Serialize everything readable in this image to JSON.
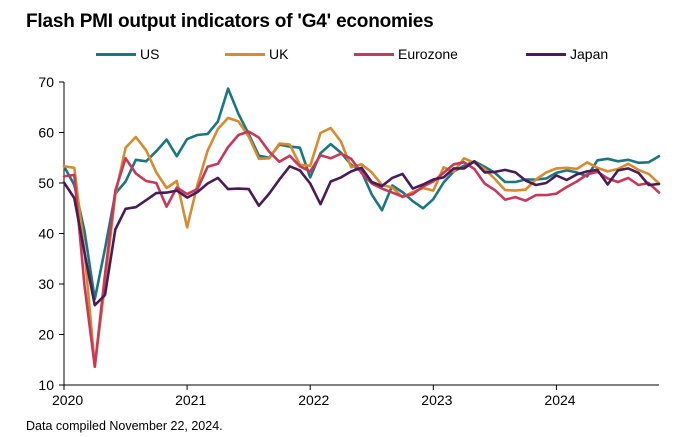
{
  "title": "Flash PMI output indicators of 'G4' economies",
  "footnote": "Data compiled November 22, 2024.",
  "chart_data": {
    "type": "line",
    "title": "Flash PMI output indicators of 'G4' economies",
    "xlabel": "",
    "ylabel": "",
    "ylim": [
      10,
      70
    ],
    "xlim": [
      "2020-01",
      "2024-11"
    ],
    "yticks": [
      10,
      20,
      30,
      40,
      50,
      60,
      70
    ],
    "xticks": [
      "2020",
      "2021",
      "2022",
      "2023",
      "2024"
    ],
    "grid": false,
    "legend_position": "top",
    "x": [
      "2020-01",
      "2020-02",
      "2020-03",
      "2020-04",
      "2020-05",
      "2020-06",
      "2020-07",
      "2020-08",
      "2020-09",
      "2020-10",
      "2020-11",
      "2020-12",
      "2021-01",
      "2021-02",
      "2021-03",
      "2021-04",
      "2021-05",
      "2021-06",
      "2021-07",
      "2021-08",
      "2021-09",
      "2021-10",
      "2021-11",
      "2021-12",
      "2022-01",
      "2022-02",
      "2022-03",
      "2022-04",
      "2022-05",
      "2022-06",
      "2022-07",
      "2022-08",
      "2022-09",
      "2022-10",
      "2022-11",
      "2022-12",
      "2023-01",
      "2023-02",
      "2023-03",
      "2023-04",
      "2023-05",
      "2023-06",
      "2023-07",
      "2023-08",
      "2023-09",
      "2023-10",
      "2023-11",
      "2023-12",
      "2024-01",
      "2024-02",
      "2024-03",
      "2024-04",
      "2024-05",
      "2024-06",
      "2024-07",
      "2024-08",
      "2024-09",
      "2024-10",
      "2024-11"
    ],
    "series": [
      {
        "name": "US",
        "color": "#1a7782",
        "values": [
          53.3,
          49.6,
          40.5,
          27.0,
          37.0,
          47.9,
          50.3,
          54.6,
          54.3,
          56.3,
          58.6,
          55.3,
          58.7,
          59.5,
          59.7,
          62.2,
          68.7,
          63.7,
          59.7,
          55.4,
          55.0,
          57.6,
          57.2,
          57.0,
          51.1,
          55.9,
          57.7,
          56.0,
          53.6,
          52.3,
          47.7,
          44.6,
          49.5,
          48.2,
          46.4,
          45.0,
          46.8,
          50.1,
          52.3,
          53.4,
          54.3,
          53.2,
          52.0,
          50.2,
          50.2,
          50.7,
          50.7,
          50.9,
          52.0,
          52.5,
          52.1,
          51.3,
          54.5,
          54.8,
          54.3,
          54.6,
          54.0,
          54.1,
          55.3
        ]
      },
      {
        "name": "UK",
        "color": "#d98a2e",
        "values": [
          53.3,
          53.0,
          36.5,
          13.8,
          30.0,
          47.7,
          57.0,
          59.1,
          56.5,
          52.1,
          49.0,
          50.4,
          41.2,
          49.6,
          56.4,
          60.7,
          62.9,
          62.2,
          59.2,
          54.8,
          54.9,
          57.8,
          57.6,
          53.6,
          53.4,
          59.9,
          60.9,
          58.2,
          53.1,
          53.7,
          52.1,
          49.6,
          49.1,
          47.2,
          48.2,
          49.0,
          48.5,
          53.1,
          52.2,
          54.9,
          54.0,
          52.8,
          50.8,
          48.6,
          48.5,
          48.7,
          50.7,
          52.1,
          52.9,
          53.0,
          52.8,
          54.1,
          53.0,
          52.3,
          52.8,
          53.8,
          52.6,
          51.8,
          49.9
        ]
      },
      {
        "name": "Eurozone",
        "color": "#c8385a",
        "values": [
          51.3,
          51.6,
          29.7,
          13.6,
          31.9,
          48.5,
          54.9,
          51.9,
          50.4,
          50.0,
          45.3,
          49.1,
          47.8,
          48.8,
          53.2,
          53.8,
          57.1,
          59.5,
          60.2,
          59.0,
          56.2,
          54.2,
          55.4,
          53.3,
          52.3,
          55.5,
          54.9,
          55.8,
          54.8,
          52.0,
          49.9,
          48.9,
          48.1,
          47.3,
          47.8,
          49.3,
          50.3,
          52.0,
          53.7,
          54.1,
          52.8,
          49.9,
          48.6,
          46.7,
          47.2,
          46.5,
          47.6,
          47.6,
          47.9,
          49.2,
          50.3,
          51.7,
          52.2,
          50.9,
          50.2,
          51.0,
          49.6,
          50.0,
          48.1
        ]
      },
      {
        "name": "Japan",
        "color": "#4a1c57",
        "values": [
          50.1,
          47.0,
          36.2,
          25.8,
          27.8,
          40.8,
          44.9,
          45.2,
          46.6,
          48.0,
          48.1,
          48.5,
          47.1,
          48.2,
          49.9,
          51.0,
          48.8,
          48.9,
          48.8,
          45.5,
          47.9,
          50.7,
          53.3,
          52.5,
          49.9,
          45.8,
          50.3,
          51.1,
          52.3,
          53.0,
          50.2,
          49.4,
          51.0,
          51.8,
          48.9,
          49.7,
          50.7,
          51.1,
          52.9,
          52.9,
          54.3,
          52.1,
          52.2,
          52.6,
          52.1,
          50.5,
          49.6,
          50.0,
          51.5,
          50.6,
          51.7,
          52.3,
          52.6,
          49.7,
          52.5,
          52.9,
          52.0,
          49.6,
          49.8
        ]
      }
    ]
  }
}
